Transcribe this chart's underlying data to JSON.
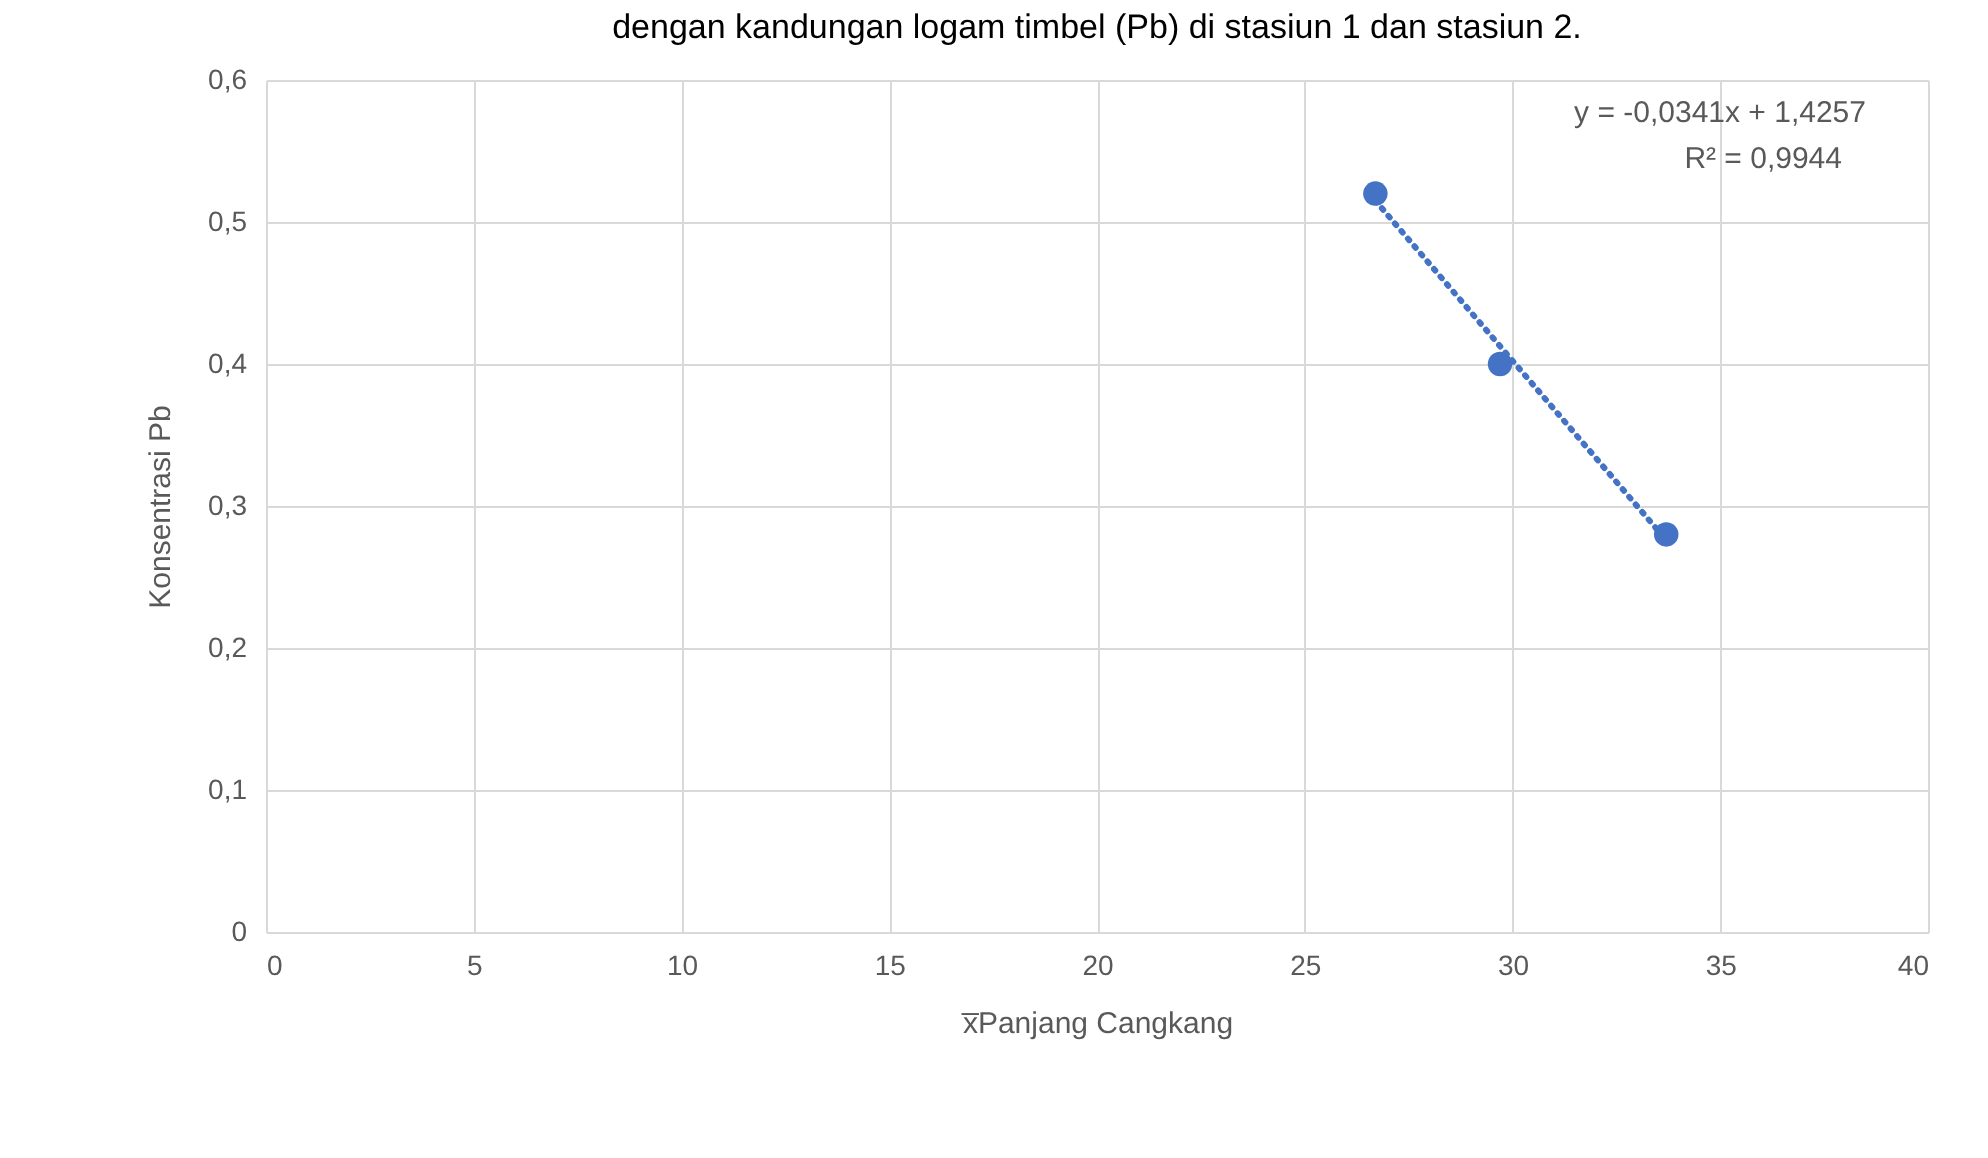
{
  "chart_data": {
    "type": "scatter",
    "title": "dengan kandungan logam timbel (Pb) di stasiun 1 dan stasiun 2.",
    "xlabel": "x̅Panjang Cangkang",
    "ylabel": "Konsentrasi Pb",
    "series": [
      {
        "color": "#4472c4",
        "x": [
          26.7,
          29.7,
          33.7
        ],
        "values": [
          0.52,
          0.4,
          0.28
        ],
        "marker": "circle"
      },
      {
        "type": "line",
        "color": "#4472c4",
        "x": [
          26.7,
          33.7
        ],
        "values": [
          0.515,
          0.276
        ],
        "line_style": "dotted",
        "marker": "none"
      }
    ],
    "annotations": [
      "y = -0,0341x + 1,4257",
      "R² = 0,9944"
    ],
    "xlim": [
      0,
      40
    ],
    "xticks": [
      0,
      5,
      10,
      15,
      20,
      25,
      30,
      35,
      40
    ],
    "ylim": [
      0,
      0.6
    ],
    "yticks": [
      0,
      {
        "value": 0.1,
        "label": "0,1"
      },
      {
        "value": 0.2,
        "label": "0,2"
      },
      {
        "value": 0.3,
        "label": "0,3"
      },
      {
        "value": 0.4,
        "label": "0,4"
      },
      {
        "value": 0.5,
        "label": "0,5"
      },
      {
        "value": 0.6,
        "label": "0,6"
      }
    ],
    "grid": true
  }
}
